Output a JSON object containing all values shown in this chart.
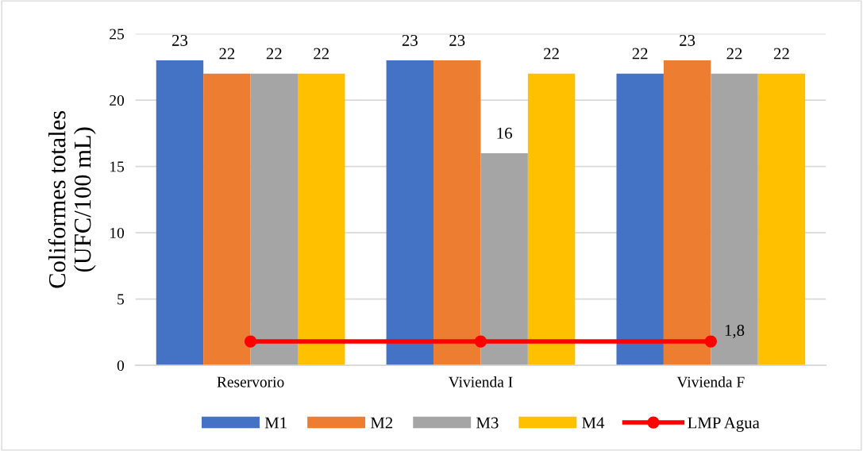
{
  "chart_data": {
    "type": "bar",
    "ylabel": "Coliformes totales\n(UFC/100 mL)",
    "categories": [
      "Reservorio",
      "Vivienda I",
      "Vivienda F"
    ],
    "series": [
      {
        "name": "M1",
        "color": "#4472c4",
        "values": [
          23,
          23,
          22
        ],
        "value_labels": [
          "23",
          "23",
          "22"
        ]
      },
      {
        "name": "M2",
        "color": "#ed7d31",
        "values": [
          22,
          23,
          23
        ],
        "value_labels": [
          "22",
          "23",
          "23"
        ]
      },
      {
        "name": "M3",
        "color": "#a5a5a5",
        "values": [
          22,
          16,
          22
        ],
        "value_labels": [
          "22",
          "16",
          "22"
        ]
      },
      {
        "name": "M4",
        "color": "#ffc000",
        "values": [
          22,
          22,
          22
        ],
        "value_labels": [
          "22",
          "22",
          "22"
        ]
      },
      {
        "name": "LMP Agua",
        "type": "line",
        "color": "#ff0000",
        "marker": "circle",
        "values": [
          1.8,
          1.8,
          1.8
        ],
        "value_labels": [
          null,
          null,
          "1,8"
        ]
      }
    ],
    "ylim": [
      0,
      25
    ],
    "yticks": [
      0,
      5,
      10,
      15,
      20,
      25
    ],
    "grid": "y",
    "legend": "bottom"
  }
}
